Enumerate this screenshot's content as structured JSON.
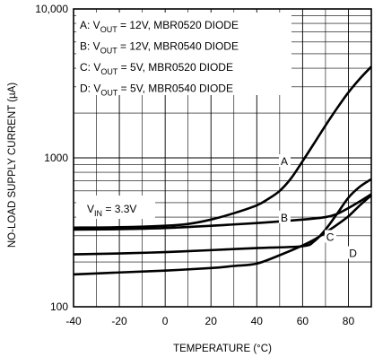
{
  "chart_data": {
    "type": "line",
    "title": "",
    "xlabel": "TEMPERATURE (°C)",
    "ylabel": "NO-LOAD SUPPLY CURRENT (µA)",
    "xlim": [
      -40,
      90
    ],
    "ylim": [
      100,
      10000
    ],
    "yscale": "log",
    "grid": true,
    "x_ticks": [
      -40,
      -20,
      0,
      20,
      40,
      60,
      80
    ],
    "x_tick_labels": [
      "-40",
      "-20",
      "0",
      "20",
      "40",
      "60",
      "80"
    ],
    "y_ticks": [
      100,
      1000,
      10000
    ],
    "y_tick_labels": [
      "100",
      "1000",
      "10,000"
    ],
    "legend": {
      "placement": "top-left",
      "entries": [
        {
          "letter": "A",
          "prefix": "A: V",
          "sub": "OUT",
          "suffix": " = 12V, MBR0520 DIODE"
        },
        {
          "letter": "B",
          "prefix": "B: V",
          "sub": "OUT",
          "suffix": " = 12V, MBR0540 DIODE"
        },
        {
          "letter": "C",
          "prefix": "C: V",
          "sub": "OUT",
          "suffix": " = 5V, MBR0520 DIODE"
        },
        {
          "letter": "D",
          "prefix": "D: V",
          "sub": "OUT",
          "suffix": " = 5V, MBR0540 DIODE"
        }
      ]
    },
    "annotation": {
      "prefix": "V",
      "sub": "IN",
      "suffix": " = 3.3V"
    },
    "series": [
      {
        "name": "A",
        "label_at": [
          52,
          920
        ],
        "x": [
          -40,
          -20,
          0,
          10,
          20,
          30,
          40,
          45,
          50,
          55,
          60,
          65,
          70,
          75,
          80,
          85,
          90
        ],
        "y": [
          340,
          342,
          350,
          360,
          385,
          425,
          480,
          530,
          600,
          730,
          950,
          1250,
          1650,
          2150,
          2750,
          3400,
          4100
        ]
      },
      {
        "name": "B",
        "label_at": [
          52,
          385
        ],
        "x": [
          -40,
          -20,
          0,
          20,
          40,
          60,
          70,
          75,
          80,
          85,
          90
        ],
        "y": [
          330,
          332,
          338,
          350,
          365,
          385,
          400,
          420,
          460,
          510,
          570
        ]
      },
      {
        "name": "C",
        "label_at": [
          72,
          285
        ],
        "x": [
          -40,
          -20,
          0,
          20,
          40,
          60,
          65,
          70,
          75,
          80,
          85,
          90
        ],
        "y": [
          225,
          228,
          233,
          240,
          248,
          255,
          275,
          330,
          420,
          540,
          640,
          720
        ]
      },
      {
        "name": "D",
        "label_at": [
          82,
          222
        ],
        "x": [
          -40,
          -20,
          0,
          20,
          30,
          40,
          50,
          60,
          65,
          70,
          75,
          80,
          85,
          90
        ],
        "y": [
          165,
          170,
          175,
          182,
          188,
          195,
          222,
          258,
          282,
          315,
          355,
          405,
          480,
          560
        ]
      }
    ]
  }
}
